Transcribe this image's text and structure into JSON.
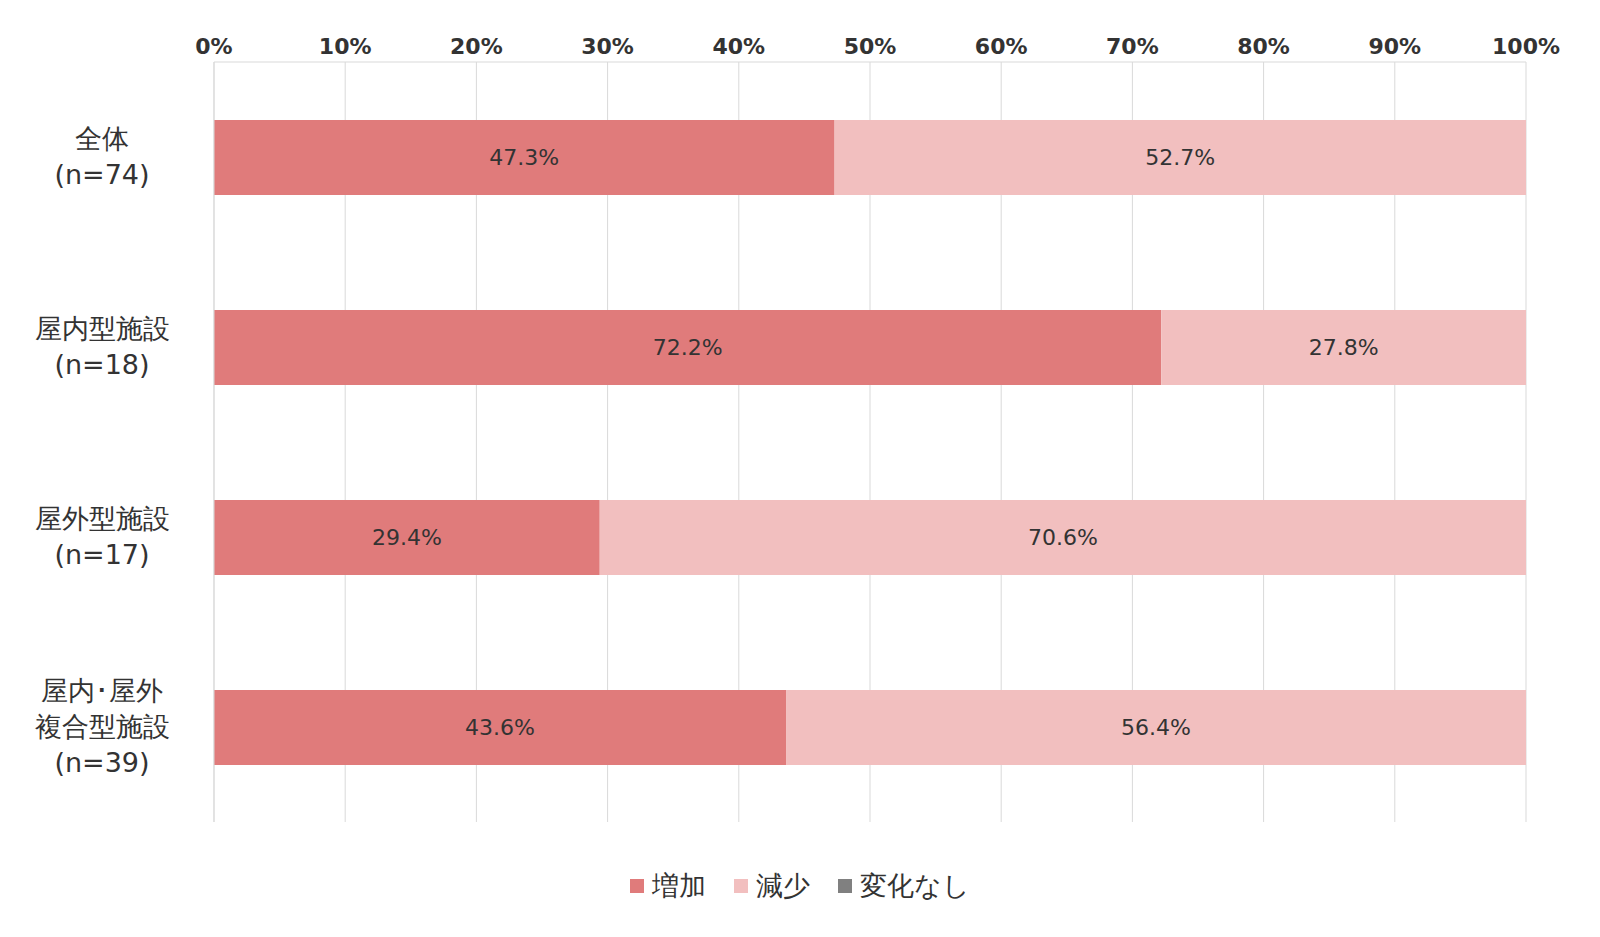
{
  "chart_data": {
    "type": "bar",
    "orientation": "horizontal",
    "stacked": true,
    "data_labels": true,
    "grid": true,
    "categories": [
      "全体\n(n=74)",
      "屋内型施設\n(n=18)",
      "屋外型施設\n(n=17)",
      "屋内･屋外\n複合型施設\n(n=39)"
    ],
    "series": [
      {
        "name": "増加",
        "color": "#e07b7b",
        "values": [
          47.3,
          72.2,
          29.4,
          43.6
        ],
        "value_labels": [
          "47.3%",
          "72.2%",
          "29.4%",
          "43.6%"
        ]
      },
      {
        "name": "減少",
        "color": "#f2bfbf",
        "values": [
          52.7,
          27.8,
          70.6,
          56.4
        ],
        "value_labels": [
          "52.7%",
          "27.8%",
          "70.6%",
          "56.4%"
        ]
      },
      {
        "name": "変化なし",
        "color": "#808080",
        "values": [
          0,
          0,
          0,
          0
        ]
      }
    ],
    "xlim": [
      0,
      100
    ],
    "xticks": [
      {
        "value": 0,
        "label": "0%"
      },
      {
        "value": 10,
        "label": "10%"
      },
      {
        "value": 20,
        "label": "20%"
      },
      {
        "value": 30,
        "label": "30%"
      },
      {
        "value": 40,
        "label": "40%"
      },
      {
        "value": 50,
        "label": "50%"
      },
      {
        "value": 60,
        "label": "60%"
      },
      {
        "value": 70,
        "label": "70%"
      },
      {
        "value": 80,
        "label": "80%"
      },
      {
        "value": 90,
        "label": "90%"
      },
      {
        "value": 100,
        "label": "100%"
      }
    ]
  }
}
